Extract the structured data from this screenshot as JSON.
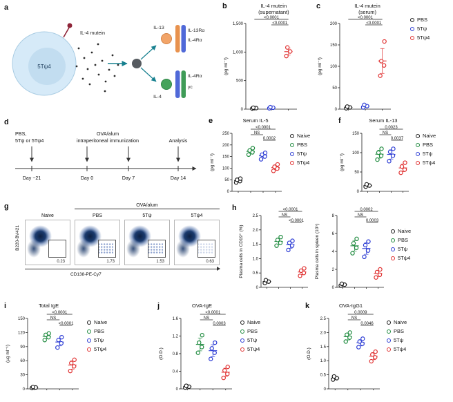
{
  "colors": {
    "black": "#1a1a1a",
    "green": "#1e8a3e",
    "blue": "#2b3bd4",
    "red": "#e03131",
    "teal": "#17808f"
  },
  "panel_labels": {
    "a": "a",
    "b": "b",
    "c": "c",
    "d": "d",
    "e": "e",
    "f": "f",
    "g": "g",
    "h": "h",
    "i": "i",
    "j": "j",
    "k": "k"
  },
  "panel_a": {
    "cell_label": "5Tψ4",
    "mutein_label": "IL-4 mutein",
    "il13_label": "IL-13",
    "il13ra_label": "IL-13Rα",
    "il4ra_top_label": "IL-4Rα",
    "il4_label": "IL-4",
    "il4ra_bottom_label": "IL-4Rα",
    "gc_label": "γc"
  },
  "panel_d": {
    "treatment_line1": "PBS,",
    "treatment_line2": "5Tψ or 5Tψ4",
    "immunization_line1": "OVA/alum",
    "immunization_line2": "intraperitoneal immunization",
    "analysis": "Analysis",
    "days": [
      "Day −21",
      "Day 0",
      "Day 7",
      "Day 14"
    ]
  },
  "panel_g": {
    "header": "OVA/alum",
    "ylabel": "B220-BV421",
    "xlabel": "CD138-PE-Cy7",
    "plots": [
      {
        "name": "Naive",
        "gate_value": "0.23"
      },
      {
        "name": "PBS",
        "gate_value": "1.73"
      },
      {
        "name": "5Tψ",
        "gate_value": "1.53"
      },
      {
        "name": "5Tψ4",
        "gate_value": "0.63"
      }
    ]
  },
  "chart_data": {
    "b": {
      "type": "scatter",
      "title": [
        "IL-4 mutein",
        "(supernatant)"
      ],
      "ylabel": "(pg ml⁻¹)",
      "ylim": [
        0,
        1500
      ],
      "yticks": [
        {
          "v": 0,
          "t": "0"
        },
        {
          "v": 500,
          "t": "500"
        },
        {
          "v": 1000,
          "t": "1,000"
        },
        {
          "v": 1500,
          "t": "1,500"
        }
      ],
      "groups": [
        {
          "name": "PBS",
          "color": "black",
          "values": [
            10,
            18,
            25
          ]
        },
        {
          "name": "5Tψ",
          "color": "blue",
          "values": [
            15,
            25,
            35
          ]
        },
        {
          "name": "5Tψ4",
          "color": "red",
          "values": [
            930,
            1010,
            1080
          ]
        }
      ],
      "sig": [
        {
          "label": "<0.0001",
          "from": 0,
          "to": 2,
          "row": 1
        },
        {
          "label": "<0.0001",
          "from": 1,
          "to": 2,
          "row": 0
        }
      ],
      "legend": null
    },
    "c": {
      "type": "scatter",
      "title": [
        "IL-4 mutein",
        "(serum)"
      ],
      "ylabel": "(pg ml⁻¹)",
      "ylim": [
        0,
        200
      ],
      "yticks": [
        {
          "v": 0,
          "t": "0"
        },
        {
          "v": 50,
          "t": "50"
        },
        {
          "v": 100,
          "t": "100"
        },
        {
          "v": 150,
          "t": "150"
        },
        {
          "v": 200,
          "t": "200"
        }
      ],
      "groups": [
        {
          "name": "PBS",
          "color": "black",
          "values": [
            2,
            4,
            6
          ]
        },
        {
          "name": "5Tψ",
          "color": "blue",
          "values": [
            4,
            7,
            10
          ]
        },
        {
          "name": "5Tψ4",
          "color": "red",
          "values": [
            78,
            102,
            112,
            158
          ]
        }
      ],
      "sig": [
        {
          "label": "<0.0001",
          "from": 0,
          "to": 2,
          "row": 1
        },
        {
          "label": "<0.0001",
          "from": 1,
          "to": 2,
          "row": 0
        }
      ],
      "legend": [
        {
          "label": "PBS",
          "color": "black"
        },
        {
          "label": "5Tψ",
          "color": "blue"
        },
        {
          "label": "5Tψ4",
          "color": "red"
        }
      ]
    },
    "e": {
      "type": "scatter",
      "title": [
        "Serum IL-5"
      ],
      "ylabel": "(pg ml⁻¹)",
      "ylim": [
        0,
        250
      ],
      "yticks": [
        {
          "v": 0,
          "t": "0"
        },
        {
          "v": 50,
          "t": "50"
        },
        {
          "v": 100,
          "t": "100"
        },
        {
          "v": 150,
          "t": "150"
        },
        {
          "v": 200,
          "t": "200"
        },
        {
          "v": 250,
          "t": "250"
        }
      ],
      "groups": [
        {
          "name": "Naive",
          "color": "black",
          "values": [
            38,
            44,
            50,
            55
          ]
        },
        {
          "name": "PBS",
          "color": "green",
          "values": [
            158,
            168,
            176,
            186
          ]
        },
        {
          "name": "5Tψ",
          "color": "blue",
          "values": [
            138,
            150,
            158,
            166
          ]
        },
        {
          "name": "5Tψ4",
          "color": "red",
          "values": [
            88,
            98,
            106,
            116
          ]
        }
      ],
      "sig": [
        {
          "label": "<0.0001",
          "from": 1,
          "to": 3,
          "row": 2
        },
        {
          "label": "NS",
          "from": 1,
          "to": 2,
          "row": 1
        },
        {
          "label": "0.0002",
          "from": 2,
          "to": 3,
          "row": 0
        }
      ],
      "legend": [
        {
          "label": "Naive",
          "color": "black"
        },
        {
          "label": "PBS",
          "color": "green"
        },
        {
          "label": "5Tψ",
          "color": "blue"
        },
        {
          "label": "5Tψ4",
          "color": "red"
        }
      ]
    },
    "f": {
      "type": "scatter",
      "title": [
        "Serum IL-13"
      ],
      "ylabel": "(pg ml⁻¹)",
      "ylim": [
        0,
        150
      ],
      "yticks": [
        {
          "v": 0,
          "t": "0"
        },
        {
          "v": 50,
          "t": "50"
        },
        {
          "v": 100,
          "t": "100"
        },
        {
          "v": 150,
          "t": "150"
        }
      ],
      "groups": [
        {
          "name": "Naive",
          "color": "black",
          "values": [
            12,
            15,
            18
          ]
        },
        {
          "name": "PBS",
          "color": "green",
          "values": [
            82,
            92,
            100,
            110
          ]
        },
        {
          "name": "5Tψ",
          "color": "blue",
          "values": [
            78,
            92,
            102,
            110
          ]
        },
        {
          "name": "5Tψ4",
          "color": "red",
          "values": [
            48,
            56,
            64,
            74
          ]
        }
      ],
      "sig": [
        {
          "label": "0.0023",
          "from": 1,
          "to": 3,
          "row": 2
        },
        {
          "label": "NS",
          "from": 1,
          "to": 2,
          "row": 1
        },
        {
          "label": "0.0037",
          "from": 2,
          "to": 3,
          "row": 0
        }
      ],
      "legend": [
        {
          "label": "Naive",
          "color": "black"
        },
        {
          "label": "PBS",
          "color": "green"
        },
        {
          "label": "5Tψ",
          "color": "blue"
        },
        {
          "label": "5Tψ4",
          "color": "red"
        }
      ]
    },
    "h1": {
      "type": "scatter",
      "title": [],
      "ylabel": "Plasma cells in CD19⁺ (%)",
      "ylim": [
        0,
        2.5
      ],
      "yticks": [
        {
          "v": 0,
          "t": "0"
        },
        {
          "v": 0.5,
          "t": "0.5"
        },
        {
          "v": 1.0,
          "t": "1.0"
        },
        {
          "v": 1.5,
          "t": "1.5"
        },
        {
          "v": 2.0,
          "t": "2.0"
        },
        {
          "v": 2.5,
          "t": "2.5"
        }
      ],
      "groups": [
        {
          "name": "Naive",
          "color": "black",
          "values": [
            0.15,
            0.2,
            0.25
          ]
        },
        {
          "name": "PBS",
          "color": "green",
          "values": [
            1.45,
            1.55,
            1.65,
            1.75
          ]
        },
        {
          "name": "5Tψ",
          "color": "blue",
          "values": [
            1.3,
            1.45,
            1.55,
            1.62
          ]
        },
        {
          "name": "5Tψ4",
          "color": "red",
          "values": [
            0.4,
            0.5,
            0.58,
            0.66
          ]
        }
      ],
      "sig": [
        {
          "label": "<0.0001",
          "from": 1,
          "to": 3,
          "row": 2
        },
        {
          "label": "NS",
          "from": 1,
          "to": 2,
          "row": 1
        },
        {
          "label": "<0.0001",
          "from": 2,
          "to": 3,
          "row": 0
        }
      ],
      "legend": [
        {
          "label": "Naive",
          "color": "black"
        },
        {
          "label": "PBS",
          "color": "green"
        },
        {
          "label": "5Tψ",
          "color": "blue"
        },
        {
          "label": "5Tψ4",
          "color": "red"
        }
      ]
    },
    "h2": {
      "type": "scatter",
      "title": [],
      "ylabel": "Plasma cells in spleen (10⁵)",
      "ylim": [
        0,
        8
      ],
      "yticks": [
        {
          "v": 0,
          "t": "0"
        },
        {
          "v": 2,
          "t": "2"
        },
        {
          "v": 4,
          "t": "4"
        },
        {
          "v": 6,
          "t": "6"
        },
        {
          "v": 8,
          "t": "8"
        }
      ],
      "groups": [
        {
          "name": "Naive",
          "color": "black",
          "values": [
            0.2,
            0.3,
            0.4
          ]
        },
        {
          "name": "PBS",
          "color": "green",
          "values": [
            3.8,
            4.4,
            4.9,
            5.4
          ]
        },
        {
          "name": "5Tψ",
          "color": "blue",
          "values": [
            3.4,
            4.1,
            4.7,
            5.1
          ]
        },
        {
          "name": "5Tψ4",
          "color": "red",
          "values": [
            1.1,
            1.4,
            1.7,
            2.0
          ]
        }
      ],
      "sig": [
        {
          "label": "0.0002",
          "from": 1,
          "to": 3,
          "row": 2
        },
        {
          "label": "NS",
          "from": 1,
          "to": 2,
          "row": 1
        },
        {
          "label": "0.0003",
          "from": 2,
          "to": 3,
          "row": 0
        }
      ],
      "legend": null
    },
    "i": {
      "type": "scatter",
      "title": [
        "Total IgE"
      ],
      "ylabel": "(µg ml⁻¹)",
      "ylim": [
        0,
        150
      ],
      "yticks": [
        {
          "v": 0,
          "t": "0"
        },
        {
          "v": 30,
          "t": "30"
        },
        {
          "v": 60,
          "t": "60"
        },
        {
          "v": 90,
          "t": "90"
        },
        {
          "v": 120,
          "t": "120"
        },
        {
          "v": 150,
          "t": "150"
        }
      ],
      "groups": [
        {
          "name": "Naive",
          "color": "black",
          "values": [
            2,
            3,
            4
          ]
        },
        {
          "name": "PBS",
          "color": "green",
          "values": [
            104,
            110,
            115,
            118
          ]
        },
        {
          "name": "5Tψ",
          "color": "blue",
          "values": [
            88,
            97,
            104,
            110
          ]
        },
        {
          "name": "5Tψ4",
          "color": "red",
          "values": [
            38,
            48,
            55,
            62
          ]
        }
      ],
      "sig": [
        {
          "label": "<0.0001",
          "from": 1,
          "to": 3,
          "row": 2
        },
        {
          "label": "NS",
          "from": 1,
          "to": 2,
          "row": 1
        },
        {
          "label": "<0.0001",
          "from": 2,
          "to": 3,
          "row": 0
        }
      ],
      "legend": [
        {
          "label": "Naive",
          "color": "black"
        },
        {
          "label": "PBS",
          "color": "green"
        },
        {
          "label": "5Tψ",
          "color": "blue"
        },
        {
          "label": "5Tψ4",
          "color": "red"
        }
      ]
    },
    "j": {
      "type": "scatter",
      "title": [
        "OVA-IgE"
      ],
      "ylabel": "(O.D.)",
      "ylim": [
        0,
        1.6
      ],
      "yticks": [
        {
          "v": 0,
          "t": "0"
        },
        {
          "v": 0.4,
          "t": "0.4"
        },
        {
          "v": 0.8,
          "t": "0.8"
        },
        {
          "v": 1.2,
          "t": "1.2"
        },
        {
          "v": 1.6,
          "t": "1.6"
        }
      ],
      "groups": [
        {
          "name": "Naive",
          "color": "black",
          "values": [
            0.03,
            0.05,
            0.07
          ]
        },
        {
          "name": "PBS",
          "color": "green",
          "values": [
            0.82,
            0.95,
            1.05,
            1.22
          ]
        },
        {
          "name": "5Tψ",
          "color": "blue",
          "values": [
            0.68,
            0.82,
            0.92,
            1.05
          ]
        },
        {
          "name": "5Tψ4",
          "color": "red",
          "values": [
            0.25,
            0.34,
            0.42,
            0.5
          ]
        }
      ],
      "sig": [
        {
          "label": "<0.0001",
          "from": 1,
          "to": 3,
          "row": 2
        },
        {
          "label": "NS",
          "from": 1,
          "to": 2,
          "row": 1
        },
        {
          "label": "0.0003",
          "from": 2,
          "to": 3,
          "row": 0
        }
      ],
      "legend": [
        {
          "label": "Naive",
          "color": "black"
        },
        {
          "label": "PBS",
          "color": "green"
        },
        {
          "label": "5Tψ",
          "color": "blue"
        },
        {
          "label": "5Tψ4",
          "color": "red"
        }
      ]
    },
    "k": {
      "type": "scatter",
      "title": [
        "OVA-IgG1"
      ],
      "ylabel": "(O.D.)",
      "ylim": [
        0,
        2.5
      ],
      "yticks": [
        {
          "v": 0,
          "t": "0"
        },
        {
          "v": 0.5,
          "t": "0.5"
        },
        {
          "v": 1.0,
          "t": "1.0"
        },
        {
          "v": 1.5,
          "t": "1.5"
        },
        {
          "v": 2.0,
          "t": "2.0"
        },
        {
          "v": 2.5,
          "t": "2.5"
        }
      ],
      "groups": [
        {
          "name": "Naive",
          "color": "black",
          "values": [
            0.33,
            0.38,
            0.44
          ]
        },
        {
          "name": "PBS",
          "color": "green",
          "values": [
            1.68,
            1.82,
            1.92,
            2.0
          ]
        },
        {
          "name": "5Tψ",
          "color": "blue",
          "values": [
            1.48,
            1.6,
            1.68,
            1.78
          ]
        },
        {
          "name": "5Tψ4",
          "color": "red",
          "values": [
            0.98,
            1.12,
            1.22,
            1.32
          ]
        }
      ],
      "sig": [
        {
          "label": "0.0009",
          "from": 1,
          "to": 3,
          "row": 2
        },
        {
          "label": "NS",
          "from": 1,
          "to": 2,
          "row": 1
        },
        {
          "label": "0.0046",
          "from": 2,
          "to": 3,
          "row": 0
        }
      ],
      "legend": [
        {
          "label": "Naive",
          "color": "black"
        },
        {
          "label": "PBS",
          "color": "green"
        },
        {
          "label": "5Tψ",
          "color": "blue"
        },
        {
          "label": "5Tψ4",
          "color": "red"
        }
      ]
    }
  }
}
